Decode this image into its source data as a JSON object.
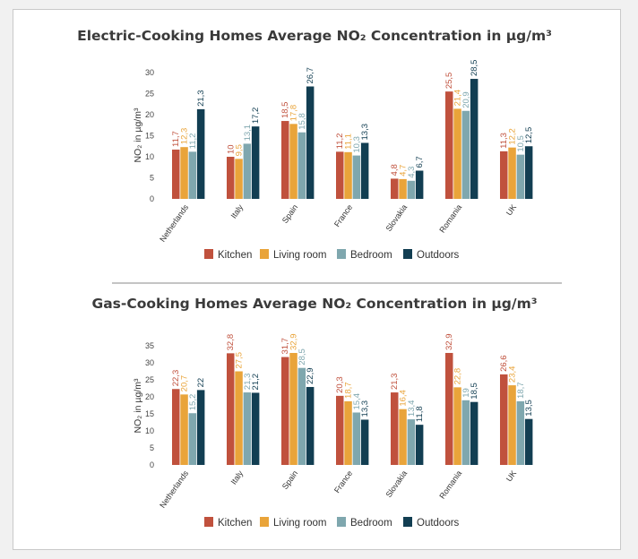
{
  "colors": {
    "Kitchen": "#c0513d",
    "Living room": "#e9a43a",
    "Bedroom": "#7fa7ae",
    "Outdoors": "#123e52"
  },
  "chart_data": [
    {
      "type": "bar",
      "title": "Electric-Cooking Homes Average NO₂ Concentration in µg/m³",
      "ylabel": "NO₂ in µg/m³",
      "ylim": [
        0,
        30
      ],
      "yticks": [
        0,
        5,
        10,
        15,
        20,
        25,
        30
      ],
      "grid": false,
      "legend_position": "bottom",
      "categories": [
        "Netherlands",
        "Italy",
        "Spain",
        "France",
        "Slovakia",
        "Romania",
        "UK"
      ],
      "series": [
        {
          "name": "Kitchen",
          "values": [
            11.7,
            10,
            18.5,
            11.2,
            4.8,
            25.5,
            11.3
          ],
          "labels": [
            "11,7",
            "10",
            "18,5",
            "11,2",
            "4,8",
            "25,5",
            "11,3"
          ]
        },
        {
          "name": "Living room",
          "values": [
            12.3,
            9.5,
            17.8,
            11.1,
            4.7,
            21.4,
            12.2
          ],
          "labels": [
            "12,3",
            "9,5",
            "17,8",
            "11,1",
            "4,7",
            "21,4",
            "12,2"
          ]
        },
        {
          "name": "Bedroom",
          "values": [
            11.2,
            13.1,
            15.8,
            10.3,
            4.3,
            20.9,
            10.5
          ],
          "labels": [
            "11,2",
            "13,1",
            "15,8",
            "10,3",
            "4,3",
            "20,9",
            "10,5"
          ]
        },
        {
          "name": "Outdoors",
          "values": [
            21.3,
            17.2,
            26.7,
            13.3,
            6.7,
            28.5,
            12.5
          ],
          "labels": [
            "21,3",
            "17,2",
            "26,7",
            "13,3",
            "6,7",
            "28,5",
            "12,5"
          ]
        }
      ]
    },
    {
      "type": "bar",
      "title": "Gas-Cooking Homes Average NO₂ Concentration in µg/m³",
      "ylabel": "NO₂ in µg/m³",
      "ylim": [
        0,
        35
      ],
      "yticks": [
        0,
        5,
        10,
        15,
        20,
        25,
        30,
        35
      ],
      "grid": false,
      "legend_position": "bottom",
      "categories": [
        "Netherlands",
        "Italy",
        "Spain",
        "France",
        "Slovakia",
        "Romania",
        "UK"
      ],
      "series": [
        {
          "name": "Kitchen",
          "values": [
            22.3,
            32.8,
            31.7,
            20.3,
            21.3,
            32.9,
            26.6
          ],
          "labels": [
            "22,3",
            "32,8",
            "31,7",
            "20,3",
            "21,3",
            "32,9",
            "26,6"
          ]
        },
        {
          "name": "Living room",
          "values": [
            20.7,
            27.5,
            32.9,
            18.7,
            16.4,
            22.8,
            23.4
          ],
          "labels": [
            "20,7",
            "27,5",
            "32,9",
            "18,7",
            "16,4",
            "22,8",
            "23,4"
          ]
        },
        {
          "name": "Bedroom",
          "values": [
            15.2,
            21.3,
            28.5,
            15.4,
            13.4,
            19,
            18.7
          ],
          "labels": [
            "15,2",
            "21,3",
            "28,5",
            "15,4",
            "13,4",
            "19",
            "18,7"
          ]
        },
        {
          "name": "Outdoors",
          "values": [
            22,
            21.2,
            22.9,
            13.3,
            11.8,
            18.5,
            13.5
          ],
          "labels": [
            "22",
            "21,2",
            "22,9",
            "13,3",
            "11,8",
            "18,5",
            "13,5"
          ]
        }
      ]
    }
  ]
}
